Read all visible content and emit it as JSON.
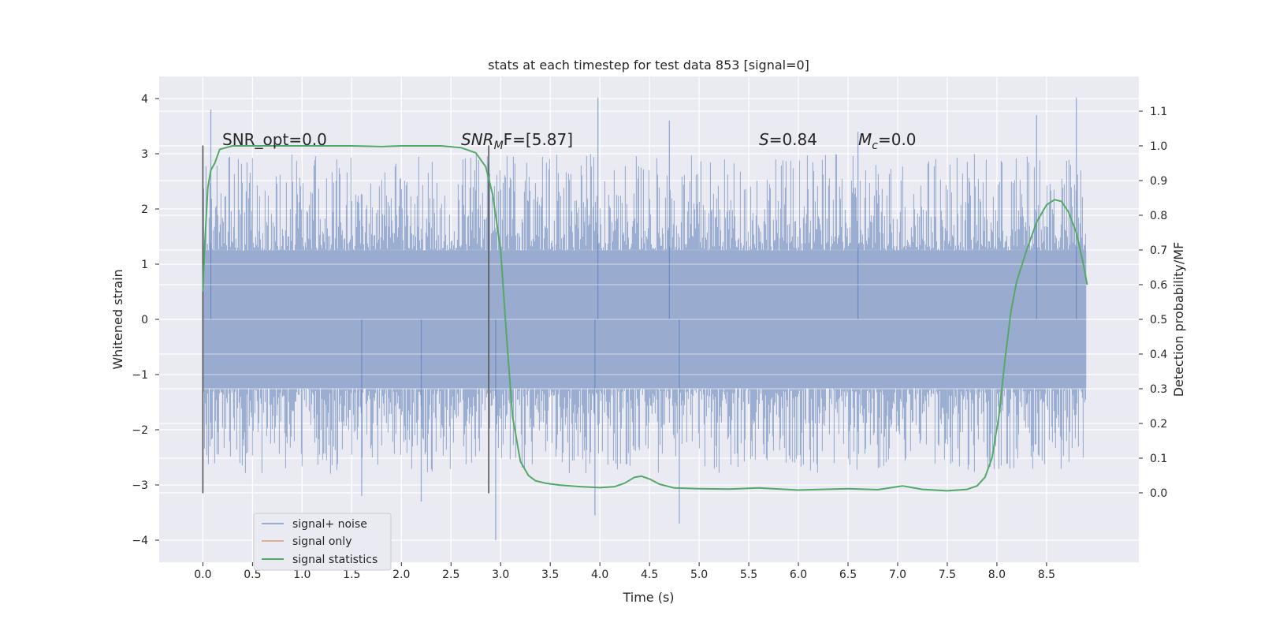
{
  "chart_data": {
    "type": "line",
    "title": "stats at each timestep for test data 853 [signal=0]",
    "xlabel": "Time (s)",
    "ylabel_left": "Whitened strain",
    "ylabel_right": "Detection probability/MF",
    "xlim": [
      -0.44,
      9.43
    ],
    "ylim_left": [
      -4.4,
      4.4
    ],
    "ylim_right": [
      -0.2,
      1.2
    ],
    "x_ticks": [
      "0.0",
      "0.5",
      "1.0",
      "1.5",
      "2.0",
      "2.5",
      "3.0",
      "3.5",
      "4.0",
      "4.5",
      "5.0",
      "5.5",
      "6.0",
      "6.5",
      "7.0",
      "7.5",
      "8.0",
      "8.5"
    ],
    "x_tick_values": [
      0,
      0.5,
      1,
      1.5,
      2,
      2.5,
      3,
      3.5,
      4,
      4.5,
      5,
      5.5,
      6,
      6.5,
      7,
      7.5,
      8,
      8.5
    ],
    "y_ticks_left": [
      "−4",
      "−3",
      "−2",
      "−1",
      "0",
      "1",
      "2",
      "3",
      "4"
    ],
    "y_tick_values_left": [
      -4,
      -3,
      -2,
      -1,
      0,
      1,
      2,
      3,
      4
    ],
    "y_ticks_right": [
      "0.0",
      "0.1",
      "0.2",
      "0.3",
      "0.4",
      "0.5",
      "0.6",
      "0.7",
      "0.8",
      "0.9",
      "1.0",
      "1.1"
    ],
    "y_tick_values_right": [
      0,
      0.1,
      0.2,
      0.3,
      0.4,
      0.5,
      0.6,
      0.7,
      0.8,
      0.9,
      1.0,
      1.1
    ],
    "grid": true,
    "legend_placement": "lower-left",
    "legend": [
      {
        "label": "signal+ noise",
        "color": "#4c72b0"
      },
      {
        "label": "signal only",
        "color": "#dd8452"
      },
      {
        "label": "signal statistics",
        "color": "#55a868"
      }
    ],
    "annotations": {
      "snr_opt": "SNR_opt=0.0",
      "snr_mf_main": "SNR",
      "snr_mf_sub": "M",
      "snr_mf_rest": "F=[5.87]",
      "s_var": "S",
      "s_rest": "=0.84",
      "mc_var": "M",
      "mc_sub": "c",
      "mc_rest": "=0.0"
    },
    "noise": {
      "t_start": 0.0,
      "t_end": 8.9,
      "band_abs": 1.25,
      "typical_peak": 2.4,
      "min": -4.0,
      "max": 4.02,
      "spikes": [
        {
          "t": 0.08,
          "v": 3.8
        },
        {
          "t": 3.98,
          "v": 4.02
        },
        {
          "t": 8.8,
          "v": 4.02
        },
        {
          "t": 4.7,
          "v": 3.6
        },
        {
          "t": 2.95,
          "v": -4.0
        },
        {
          "t": 4.8,
          "v": -3.7
        },
        {
          "t": 1.6,
          "v": -3.2
        },
        {
          "t": 2.2,
          "v": -3.3
        },
        {
          "t": 3.95,
          "v": -3.55
        },
        {
          "t": 8.4,
          "v": 3.7
        },
        {
          "t": 6.6,
          "v": 3.4
        }
      ]
    },
    "markers": [
      {
        "t": 0.0,
        "y1": -3.15,
        "y2": 3.15
      },
      {
        "t": 2.88,
        "y1": -3.15,
        "y2": 3.15
      }
    ],
    "series": [
      {
        "name": "signal statistics",
        "color": "#55a868",
        "points": [
          [
            0.0,
            0.58
          ],
          [
            0.02,
            0.72
          ],
          [
            0.05,
            0.88
          ],
          [
            0.08,
            0.93
          ],
          [
            0.12,
            0.95
          ],
          [
            0.17,
            0.99
          ],
          [
            0.3,
            1.0
          ],
          [
            1.0,
            1.0
          ],
          [
            1.5,
            1.0
          ],
          [
            1.8,
            0.998
          ],
          [
            2.0,
            1.0
          ],
          [
            2.4,
            1.0
          ],
          [
            2.6,
            0.995
          ],
          [
            2.75,
            0.98
          ],
          [
            2.85,
            0.94
          ],
          [
            2.92,
            0.86
          ],
          [
            3.0,
            0.7
          ],
          [
            3.06,
            0.45
          ],
          [
            3.12,
            0.22
          ],
          [
            3.2,
            0.09
          ],
          [
            3.28,
            0.05
          ],
          [
            3.35,
            0.035
          ],
          [
            3.45,
            0.028
          ],
          [
            3.6,
            0.022
          ],
          [
            3.8,
            0.018
          ],
          [
            4.0,
            0.015
          ],
          [
            4.15,
            0.018
          ],
          [
            4.25,
            0.028
          ],
          [
            4.35,
            0.045
          ],
          [
            4.42,
            0.048
          ],
          [
            4.5,
            0.04
          ],
          [
            4.6,
            0.025
          ],
          [
            4.75,
            0.014
          ],
          [
            5.0,
            0.012
          ],
          [
            5.3,
            0.011
          ],
          [
            5.6,
            0.014
          ],
          [
            6.0,
            0.008
          ],
          [
            6.5,
            0.012
          ],
          [
            6.8,
            0.009
          ],
          [
            7.05,
            0.02
          ],
          [
            7.25,
            0.01
          ],
          [
            7.5,
            0.006
          ],
          [
            7.7,
            0.01
          ],
          [
            7.8,
            0.02
          ],
          [
            7.88,
            0.045
          ],
          [
            7.95,
            0.1
          ],
          [
            8.02,
            0.22
          ],
          [
            8.08,
            0.38
          ],
          [
            8.14,
            0.52
          ],
          [
            8.2,
            0.61
          ],
          [
            8.3,
            0.7
          ],
          [
            8.4,
            0.78
          ],
          [
            8.5,
            0.83
          ],
          [
            8.58,
            0.845
          ],
          [
            8.65,
            0.84
          ],
          [
            8.72,
            0.81
          ],
          [
            8.8,
            0.75
          ],
          [
            8.87,
            0.66
          ],
          [
            8.91,
            0.6
          ]
        ]
      }
    ]
  }
}
